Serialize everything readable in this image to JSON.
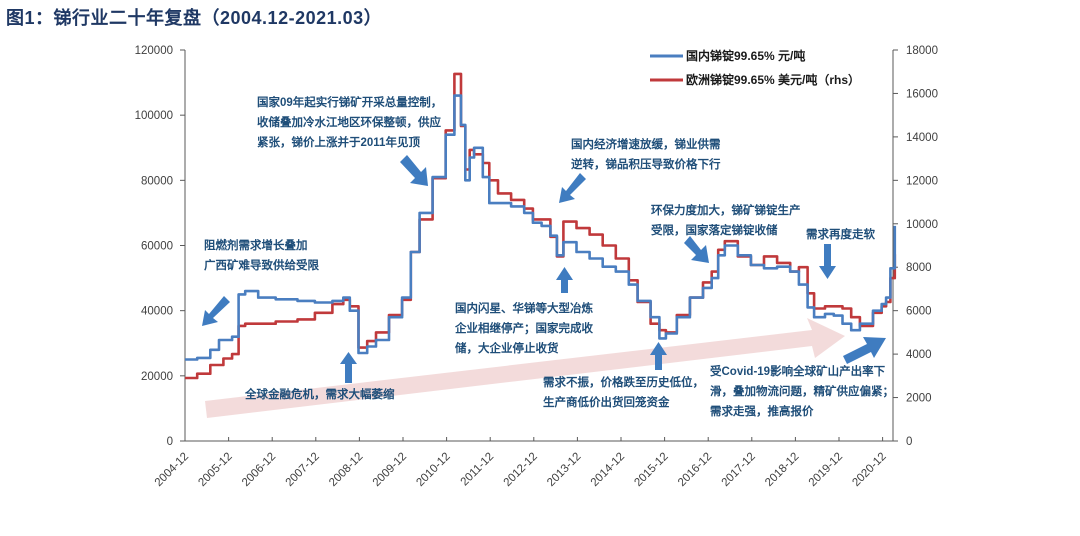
{
  "title": "图1：锑行业二十年复盘（2004.12-2021.03）",
  "colors": {
    "domestic": "#4a7ec0",
    "europe": "#c0393b",
    "annotation": "#1f4e79",
    "arrow": "#3f7cc0",
    "trend_arrow": "#f2d7d7"
  },
  "chart_data": {
    "type": "line",
    "title": "锑行业二十年复盘（2004.12-2021.03）",
    "xlabel": "",
    "ylabel": "元/吨",
    "y2label": "美元/吨 (rhs)",
    "ylim": [
      0,
      120000
    ],
    "y2lim": [
      0,
      18000
    ],
    "yticks": [
      "0",
      "20000",
      "40000",
      "60000",
      "80000",
      "100000",
      "120000"
    ],
    "y2ticks": [
      "0",
      "2000",
      "4000",
      "6000",
      "8000",
      "10000",
      "12000",
      "14000",
      "16000",
      "18000"
    ],
    "categories": [
      "2004-12",
      "2005-12",
      "2006-12",
      "2007-12",
      "2008-12",
      "2009-12",
      "2010-12",
      "2011-12",
      "2012-12",
      "2013-12",
      "2014-12",
      "2015-12",
      "2016-12",
      "2017-12",
      "2018-12",
      "2019-12",
      "2020-12"
    ],
    "legend_position": "top-right",
    "grid": false,
    "series": [
      {
        "name": "国内锑锭99.65% 元/吨",
        "axis": "left",
        "color": "#4a7ec0",
        "x": [
          2004.92,
          2005.2,
          2005.5,
          2005.7,
          2006.0,
          2006.15,
          2006.3,
          2006.6,
          2007.0,
          2007.5,
          2007.9,
          2008.3,
          2008.55,
          2008.7,
          2008.9,
          2009.1,
          2009.3,
          2009.6,
          2009.9,
          2010.1,
          2010.3,
          2010.6,
          2010.9,
          2011.1,
          2011.25,
          2011.35,
          2011.45,
          2011.55,
          2011.75,
          2011.9,
          2012.1,
          2012.4,
          2012.7,
          2012.9,
          2013.1,
          2013.3,
          2013.45,
          2013.6,
          2013.9,
          2014.2,
          2014.5,
          2014.8,
          2015.1,
          2015.3,
          2015.6,
          2015.8,
          2015.95,
          2016.2,
          2016.5,
          2016.8,
          2017.0,
          2017.15,
          2017.3,
          2017.6,
          2017.9,
          2018.2,
          2018.5,
          2018.8,
          2019.0,
          2019.2,
          2019.35,
          2019.6,
          2019.8,
          2020.0,
          2020.2,
          2020.4,
          2020.7,
          2020.9,
          2021.0,
          2021.1,
          2021.2
        ],
        "values": [
          25000,
          25500,
          28000,
          31000,
          32000,
          45000,
          46000,
          44000,
          43500,
          43000,
          42500,
          43000,
          44000,
          40000,
          27000,
          29000,
          31000,
          38000,
          44000,
          58000,
          70000,
          81000,
          94000,
          106000,
          97000,
          80000,
          87000,
          90000,
          81000,
          73000,
          73000,
          72000,
          70000,
          67000,
          66000,
          63000,
          57000,
          61000,
          58000,
          56000,
          53500,
          52000,
          48000,
          43000,
          38000,
          31500,
          33000,
          38000,
          44000,
          47000,
          50000,
          57000,
          60000,
          57000,
          54000,
          53000,
          53500,
          52000,
          48000,
          41000,
          38000,
          39000,
          38500,
          36000,
          34000,
          36000,
          40000,
          42000,
          44000,
          53000,
          66000
        ]
      },
      {
        "name": "欧洲锑锭99.65% 美元/吨（rhs）",
        "axis": "right",
        "color": "#c0393b",
        "x": [
          2004.92,
          2005.2,
          2005.5,
          2005.8,
          2006.0,
          2006.15,
          2006.3,
          2006.6,
          2007.0,
          2007.5,
          2007.9,
          2008.3,
          2008.55,
          2008.7,
          2008.9,
          2009.1,
          2009.3,
          2009.6,
          2009.9,
          2010.1,
          2010.3,
          2010.6,
          2010.9,
          2011.1,
          2011.25,
          2011.35,
          2011.45,
          2011.55,
          2011.75,
          2011.9,
          2012.1,
          2012.4,
          2012.7,
          2012.9,
          2013.1,
          2013.3,
          2013.45,
          2013.6,
          2013.9,
          2014.2,
          2014.5,
          2014.8,
          2015.1,
          2015.3,
          2015.6,
          2015.8,
          2015.95,
          2016.2,
          2016.5,
          2016.8,
          2017.0,
          2017.15,
          2017.3,
          2017.6,
          2017.9,
          2018.2,
          2018.5,
          2018.8,
          2019.0,
          2019.2,
          2019.35,
          2019.6,
          2019.8,
          2020.0,
          2020.2,
          2020.4,
          2020.7,
          2020.9,
          2021.0,
          2021.1,
          2021.2
        ],
        "values": [
          2900,
          3100,
          3500,
          3800,
          4000,
          5300,
          5400,
          5400,
          5500,
          5600,
          5900,
          6300,
          6500,
          6200,
          4300,
          4600,
          5000,
          5800,
          6500,
          8700,
          10200,
          12100,
          14300,
          16900,
          14500,
          12500,
          13400,
          13200,
          12800,
          12000,
          11400,
          11100,
          10700,
          10200,
          10200,
          9400,
          8500,
          10100,
          9800,
          9500,
          9000,
          8400,
          7400,
          6400,
          5400,
          5100,
          5000,
          5800,
          6600,
          7300,
          7800,
          8800,
          9200,
          8500,
          8100,
          8500,
          8200,
          7800,
          8000,
          6800,
          6100,
          6200,
          6200,
          6100,
          5700,
          5300,
          5900,
          6200,
          6400,
          7500,
          8600
        ]
      }
    ],
    "annotations": [
      {
        "text": [
          "阻燃剂需求增长叠加",
          "广西矿难导致供给受限"
        ]
      },
      {
        "text": [
          "全球金融危机，需求大幅萎缩"
        ]
      },
      {
        "text": [
          "国家09年起实行锑矿开采总量控制，",
          "收储叠加冷水江地区环保整顿，供应",
          "紧张，锑价上涨并于2011年见顶"
        ]
      },
      {
        "text": [
          "国内经济增速放缓，锑业供需",
          "逆转，锑品积压导致价格下行"
        ]
      },
      {
        "text": [
          "国内闪星、华锑等大型冶炼",
          "企业相继停产；国家完成收",
          "储，大企业停止收货"
        ]
      },
      {
        "text": [
          "需求不振，价格跌至历史低位，",
          "生产商低价出货回笼资金"
        ]
      },
      {
        "text": [
          "环保力度加大，锑矿锑锭生产",
          "受限，国家落定锑锭收储"
        ]
      },
      {
        "text": [
          "需求再度走软"
        ]
      },
      {
        "text": [
          "受Covid-19影响全球矿山产出率下",
          "滑，叠加物流问题，精矿供应偏紧；",
          "需求走强，推高报价"
        ]
      }
    ]
  }
}
